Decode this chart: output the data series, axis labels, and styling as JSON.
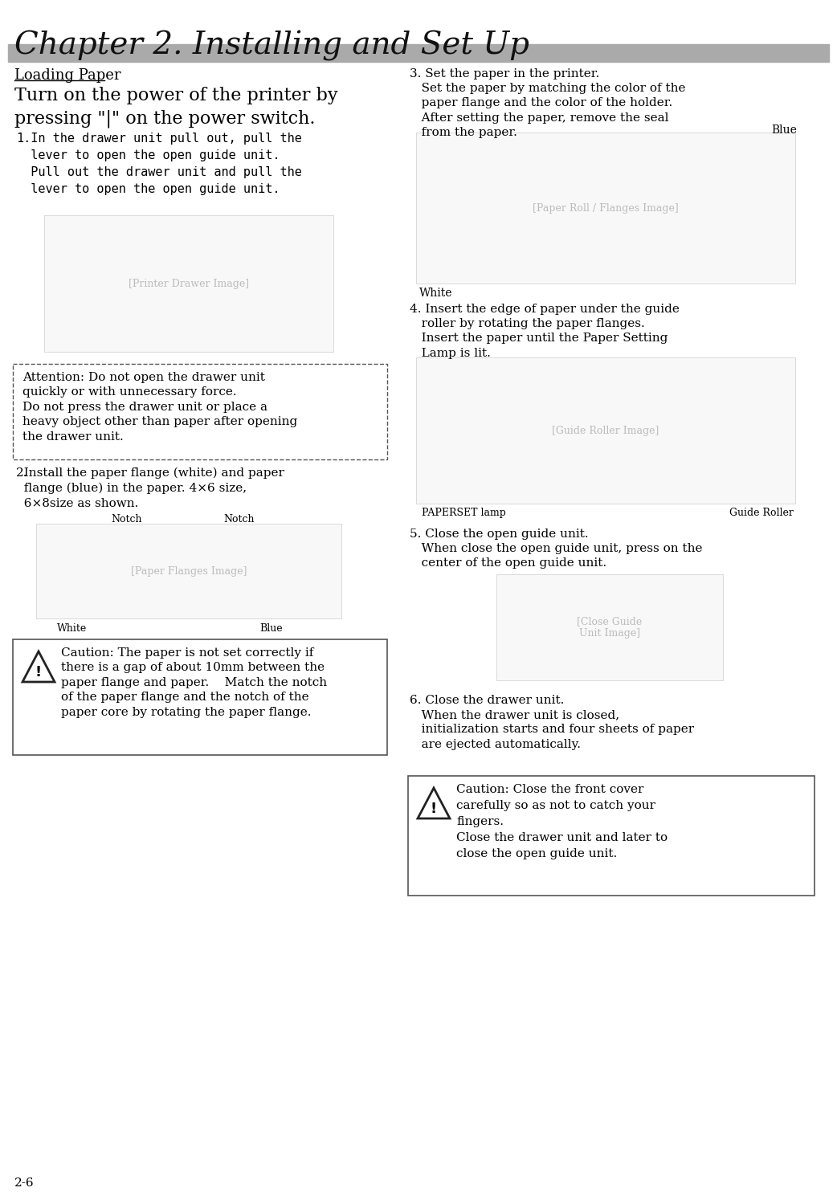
{
  "title": "Chapter 2. Installing and Set Up",
  "page_number": "2-6",
  "bg_color": "#ffffff",
  "title_fontsize": 28,
  "body_fontsize": 11,
  "header_bar_color": "#aaaaaa",
  "section_heading": "Loading Paper",
  "intro_text": "Turn on the power of the printer by\npressing \"|\" on the power switch.",
  "item1_text": "  In the drawer unit pull out, pull the\n  lever to open the open guide unit.\n  Pull out the drawer unit and pull the\n  lever to open the open guide unit.",
  "attention_text": "Attention: Do not open the drawer unit\nquickly or with unnecessary force.\nDo not press the drawer unit or place a\nheavy object other than paper after opening\nthe drawer unit.",
  "item2_text": "  Install the paper flange (white) and paper\n  flange (blue) in the paper. 4×6 size,\n  6×8size as shown.",
  "caution1_text": "Caution: The paper is not set correctly if\nthere is a gap of about 10mm between the\npaper flange and paper.    Match the notch\nof the paper flange and the notch of the\npaper core by rotating the paper flange.",
  "item3_line1": "3. Set the paper in the printer.",
  "item3_rest": "   Set the paper by matching the color of the\n   paper flange and the color of the holder.\n   After setting the paper, remove the seal\n   from the paper.",
  "item4_line1": "4. Insert the edge of paper under the guide",
  "item4_rest": "   roller by rotating the paper flanges.\n   Insert the paper until the Paper Setting\n   Lamp is lit.",
  "item5_line1": "5. Close the open guide unit.",
  "item5_rest": "   When close the open guide unit, press on the\n   center of the open guide unit.",
  "item6_line1": "6. Close the drawer unit.",
  "item6_rest": "   When the drawer unit is closed,\n   initialization starts and four sheets of paper\n   are ejected automatically.",
  "caution2_text": "Caution: Close the front cover\ncarefully so as not to catch your\nfingers.\nClose the drawer unit and later to\nclose the open guide unit.",
  "label_blue": "Blue",
  "label_white": "White",
  "label_notch_l": "Notch",
  "label_notch_r": "Notch",
  "label_col_white": "White",
  "label_col_blue": "Blue",
  "label_paperset": "PAPERSET lamp",
  "label_guide": "Guide Roller"
}
